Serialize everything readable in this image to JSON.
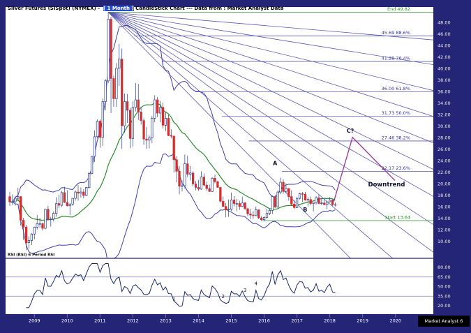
{
  "window": {
    "badge": "Market Analyst 6"
  },
  "header": {
    "title_pre": "Silver Futures (SISpot) (NYMEX) -  ",
    "title_highlight": "[ 1 Month ]",
    "title_post": " CandleStick Chart --- Data from : Market Analyst Data"
  },
  "colors": {
    "frame": "#252578",
    "plot_bg": "#ffffff",
    "candle_down": "#d03030",
    "candle_up_stroke": "#2b3a8c",
    "band": "#4040b0",
    "ma": "#2e8b2e",
    "fan": "#5a5ab2",
    "fib": "#5a5ab2",
    "fib_label": "#333399",
    "green": "#2e8b2e",
    "projection": "#993399",
    "rsi_line": "#1b2a6b",
    "rsi_hline": "#8080c0",
    "axis_text": "#e8e8f4",
    "annotation": "#111133",
    "year_text": "#ffffff"
  },
  "chart_data": {
    "type": "candlestick",
    "instrument": "Silver Futures (SISpot) (NYMEX)",
    "interval": "1 Month",
    "start_month": "2008-04",
    "grid": false,
    "legend": false,
    "ylim_price": [
      8,
      50
    ],
    "ylim_rsi": [
      10,
      95
    ],
    "price_axis_ticks": [
      48,
      46,
      44,
      42,
      40,
      38,
      36,
      34,
      32,
      30,
      28,
      26,
      24,
      22,
      20,
      18,
      16,
      14,
      12,
      10
    ],
    "rsi_axis_ticks": [
      80,
      65,
      50,
      35,
      20
    ],
    "years": [
      2009,
      2010,
      2011,
      2012,
      2013,
      2014,
      2015,
      2016,
      2017,
      2018,
      2019,
      2020
    ],
    "candles_ohlc": [
      [
        17.8,
        18.6,
        16.2,
        16.9
      ],
      [
        16.9,
        18.2,
        16.3,
        16.9
      ],
      [
        16.9,
        17.9,
        16.2,
        17.5
      ],
      [
        17.5,
        19.3,
        17.0,
        17.8
      ],
      [
        17.8,
        17.9,
        12.8,
        13.7
      ],
      [
        13.7,
        14.1,
        10.3,
        12.5
      ],
      [
        12.5,
        12.9,
        8.5,
        9.8
      ],
      [
        9.8,
        10.9,
        8.8,
        10.2
      ],
      [
        10.2,
        11.5,
        9.4,
        11.3
      ],
      [
        11.3,
        12.6,
        10.4,
        12.5
      ],
      [
        12.5,
        14.6,
        12.1,
        13.1
      ],
      [
        13.1,
        14.1,
        12.4,
        13.1
      ],
      [
        13.1,
        13.3,
        11.9,
        12.3
      ],
      [
        12.3,
        15.7,
        12.1,
        15.6
      ],
      [
        15.6,
        16.2,
        13.6,
        13.9
      ],
      [
        13.9,
        14.3,
        12.6,
        13.9
      ],
      [
        13.9,
        15.2,
        13.5,
        14.9
      ],
      [
        14.9,
        17.7,
        14.3,
        16.6
      ],
      [
        16.6,
        18.1,
        15.8,
        16.3
      ],
      [
        16.3,
        18.8,
        16.0,
        18.5
      ],
      [
        18.5,
        19.5,
        16.7,
        16.8
      ],
      [
        16.8,
        18.9,
        16.1,
        16.2
      ],
      [
        16.2,
        16.7,
        14.6,
        16.5
      ],
      [
        16.5,
        17.6,
        16.2,
        17.5
      ],
      [
        17.5,
        18.9,
        17.1,
        18.6
      ],
      [
        18.6,
        19.8,
        17.1,
        18.4
      ],
      [
        18.4,
        19.4,
        17.6,
        18.6
      ],
      [
        18.6,
        19.1,
        17.5,
        18.0
      ],
      [
        18.0,
        19.5,
        17.9,
        19.4
      ],
      [
        19.4,
        22.1,
        19.2,
        21.8
      ],
      [
        21.8,
        24.9,
        21.7,
        24.8
      ],
      [
        24.8,
        29.3,
        23.8,
        28.2
      ],
      [
        28.2,
        31.2,
        27.9,
        30.9
      ],
      [
        30.9,
        31.2,
        26.3,
        28.1
      ],
      [
        28.1,
        34.9,
        26.6,
        34.3
      ],
      [
        34.3,
        38.2,
        32.8,
        37.9
      ],
      [
        37.9,
        49.8,
        37.5,
        48.6
      ],
      [
        48.6,
        49.0,
        32.3,
        38.3
      ],
      [
        38.3,
        38.8,
        33.4,
        34.8
      ],
      [
        34.8,
        41.0,
        33.4,
        40.1
      ],
      [
        40.1,
        44.3,
        37.0,
        41.7
      ],
      [
        41.7,
        43.5,
        26.1,
        30.1
      ],
      [
        30.1,
        35.7,
        28.9,
        34.3
      ],
      [
        34.3,
        35.6,
        30.6,
        32.8
      ],
      [
        32.8,
        33.2,
        26.2,
        27.9
      ],
      [
        27.9,
        34.4,
        26.5,
        33.3
      ],
      [
        33.3,
        37.5,
        32.6,
        34.6
      ],
      [
        34.6,
        37.4,
        31.1,
        32.5
      ],
      [
        32.5,
        33.4,
        30.3,
        31.0
      ],
      [
        31.0,
        31.4,
        26.8,
        27.8
      ],
      [
        27.8,
        29.9,
        26.1,
        27.6
      ],
      [
        27.6,
        28.4,
        26.2,
        28.0
      ],
      [
        28.0,
        31.8,
        27.1,
        31.4
      ],
      [
        31.4,
        35.4,
        30.7,
        34.6
      ],
      [
        34.6,
        35.1,
        31.6,
        32.3
      ],
      [
        32.3,
        34.4,
        30.7,
        33.3
      ],
      [
        33.3,
        34.1,
        29.6,
        30.2
      ],
      [
        30.2,
        32.5,
        29.2,
        31.4
      ],
      [
        31.4,
        32.0,
        28.3,
        28.4
      ],
      [
        28.4,
        29.5,
        27.9,
        28.3
      ],
      [
        28.3,
        28.4,
        22.0,
        24.2
      ],
      [
        24.2,
        24.8,
        20.3,
        22.2
      ],
      [
        22.2,
        23.1,
        18.2,
        19.6
      ],
      [
        19.6,
        20.6,
        18.7,
        19.7
      ],
      [
        19.7,
        25.1,
        19.2,
        23.5
      ],
      [
        23.5,
        24.9,
        21.2,
        21.7
      ],
      [
        21.7,
        23.1,
        20.6,
        21.9
      ],
      [
        21.9,
        22.2,
        19.6,
        20.0
      ],
      [
        20.0,
        20.5,
        18.9,
        19.4
      ],
      [
        19.4,
        20.7,
        18.8,
        19.1
      ],
      [
        19.1,
        22.2,
        19.0,
        21.2
      ],
      [
        21.2,
        21.8,
        19.6,
        19.8
      ],
      [
        19.8,
        20.4,
        18.8,
        19.2
      ],
      [
        19.2,
        19.9,
        18.6,
        18.7
      ],
      [
        18.7,
        21.2,
        18.6,
        21.0
      ],
      [
        21.0,
        21.6,
        20.1,
        20.4
      ],
      [
        20.4,
        20.6,
        19.3,
        19.4
      ],
      [
        19.4,
        19.5,
        16.8,
        17.0
      ],
      [
        17.0,
        17.8,
        16.0,
        16.1
      ],
      [
        16.1,
        16.7,
        14.2,
        15.5
      ],
      [
        15.5,
        17.3,
        14.3,
        15.6
      ],
      [
        15.6,
        18.5,
        15.3,
        17.2
      ],
      [
        17.2,
        17.9,
        16.1,
        16.6
      ],
      [
        16.6,
        17.4,
        15.3,
        16.6
      ],
      [
        16.6,
        17.1,
        15.5,
        16.1
      ],
      [
        16.1,
        17.8,
        16.0,
        16.7
      ],
      [
        16.7,
        16.9,
        15.5,
        15.7
      ],
      [
        15.7,
        15.9,
        14.4,
        14.8
      ],
      [
        14.8,
        15.7,
        13.9,
        14.6
      ],
      [
        14.6,
        15.3,
        14.0,
        14.5
      ],
      [
        14.5,
        16.1,
        14.4,
        15.5
      ],
      [
        15.5,
        15.6,
        13.9,
        14.1
      ],
      [
        14.1,
        14.4,
        13.6,
        13.8
      ],
      [
        13.8,
        14.4,
        13.5,
        14.2
      ],
      [
        14.2,
        15.7,
        14.0,
        14.9
      ],
      [
        14.9,
        15.7,
        14.6,
        15.4
      ],
      [
        15.4,
        18.0,
        14.8,
        17.8
      ],
      [
        17.8,
        18.1,
        15.8,
        16.0
      ],
      [
        16.0,
        18.9,
        15.8,
        18.6
      ],
      [
        18.6,
        21.1,
        18.2,
        20.3
      ],
      [
        20.3,
        20.8,
        18.3,
        18.7
      ],
      [
        18.7,
        20.1,
        18.4,
        19.2
      ],
      [
        19.2,
        19.3,
        17.1,
        17.8
      ],
      [
        17.8,
        18.9,
        16.2,
        16.5
      ],
      [
        16.5,
        17.2,
        15.7,
        15.9
      ],
      [
        15.9,
        17.7,
        15.8,
        17.5
      ],
      [
        17.5,
        18.5,
        17.3,
        18.3
      ],
      [
        18.3,
        18.6,
        16.9,
        18.2
      ],
      [
        18.2,
        18.6,
        17.1,
        17.2
      ],
      [
        17.2,
        17.7,
        16.1,
        17.3
      ],
      [
        17.3,
        17.8,
        16.3,
        16.6
      ],
      [
        16.6,
        16.8,
        15.2,
        16.8
      ],
      [
        16.8,
        17.9,
        16.4,
        17.6
      ],
      [
        17.6,
        18.2,
        16.5,
        16.6
      ],
      [
        16.6,
        17.5,
        16.3,
        16.7
      ],
      [
        16.7,
        17.4,
        16.3,
        16.4
      ],
      [
        16.4,
        16.9,
        15.6,
        16.9
      ],
      [
        16.9,
        17.7,
        16.8,
        17.2
      ],
      [
        17.2,
        17.3,
        16.2,
        16.4
      ],
      [
        16.4,
        16.8,
        16.1,
        16.3
      ]
    ],
    "overlays": {
      "bollinger": {
        "period": 20,
        "stddev": 2
      },
      "moving_average_period": 20,
      "fibonacci_levels": [
        {
          "label": "End 49.82",
          "value": 49.82,
          "style": "green",
          "from_month_index": 36
        },
        {
          "label": "45.69 88.6%",
          "value": 45.69,
          "style": "fib"
        },
        {
          "label": "41.28 76.4%",
          "value": 41.28,
          "style": "fib"
        },
        {
          "label": "36.00 61.8%",
          "value": 36.0,
          "style": "fib"
        },
        {
          "label": "31.73 50.0%",
          "value": 31.73,
          "style": "fib"
        },
        {
          "label": "27.46 38.2%",
          "value": 27.46,
          "style": "fib"
        },
        {
          "label": "22.17 23.6%",
          "value": 22.17,
          "style": "fib"
        },
        {
          "label": "Start 13.64",
          "value": 13.64,
          "style": "green",
          "from_month_index": 92
        }
      ],
      "fan": {
        "origin_month_index": 36,
        "origin_price": 49.82,
        "end_month_index": 155,
        "end_prices": [
          45.0,
          40.7,
          36.2,
          31.7,
          27.1,
          22.5,
          17.8,
          12.9,
          8.1,
          0.9,
          -7.6
        ]
      },
      "fib_stair_ref": {
        "month_index": 155,
        "price": -2
      }
    },
    "projection": {
      "points": [
        [
          118.5,
          17.0
        ],
        [
          125.3,
          28.1
        ],
        [
          140.8,
          20.6
        ]
      ]
    },
    "annotations": [
      {
        "text": "A",
        "month_index": 97,
        "price": 23.3
      },
      {
        "text": "B",
        "month_index": 108,
        "price": 15.2
      },
      {
        "text": "C?",
        "month_index": 124.5,
        "price": 28.9
      },
      {
        "text": "Downtrend",
        "month_index": 131,
        "price": 19.6,
        "anchor": "start",
        "size": 8.5
      }
    ],
    "rsi": {
      "label": "RSI (RSI) 6 Period RSI",
      "period": 6,
      "hlines": [
        65,
        35
      ],
      "numbers": [
        {
          "text": "1",
          "month_index": 60,
          "value": 28
        },
        {
          "text": "2",
          "month_index": 78,
          "value": 32
        },
        {
          "text": "3",
          "month_index": 86,
          "value": 42
        },
        {
          "text": "4",
          "month_index": 90,
          "value": 52
        }
      ]
    }
  }
}
